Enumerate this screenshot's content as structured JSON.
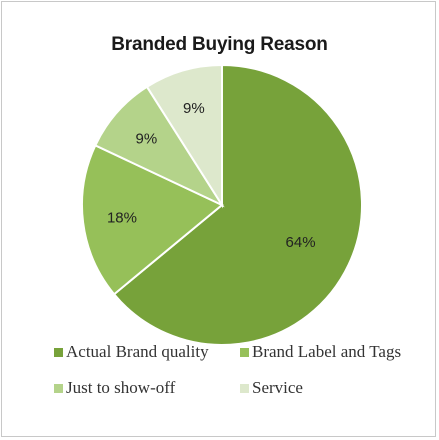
{
  "chart_data": {
    "type": "pie",
    "title": "Branded Buying Reason",
    "categories": [
      "Actual Brand quality",
      "Brand Label and Tags",
      "Just to show-off",
      "Service"
    ],
    "values": [
      64,
      18,
      9,
      9
    ],
    "labels": [
      "64%",
      "18%",
      "9%",
      "9%"
    ],
    "colors": [
      "#77a23a",
      "#96c059",
      "#b4d38a",
      "#dde8cc"
    ],
    "legend_position": "bottom"
  }
}
